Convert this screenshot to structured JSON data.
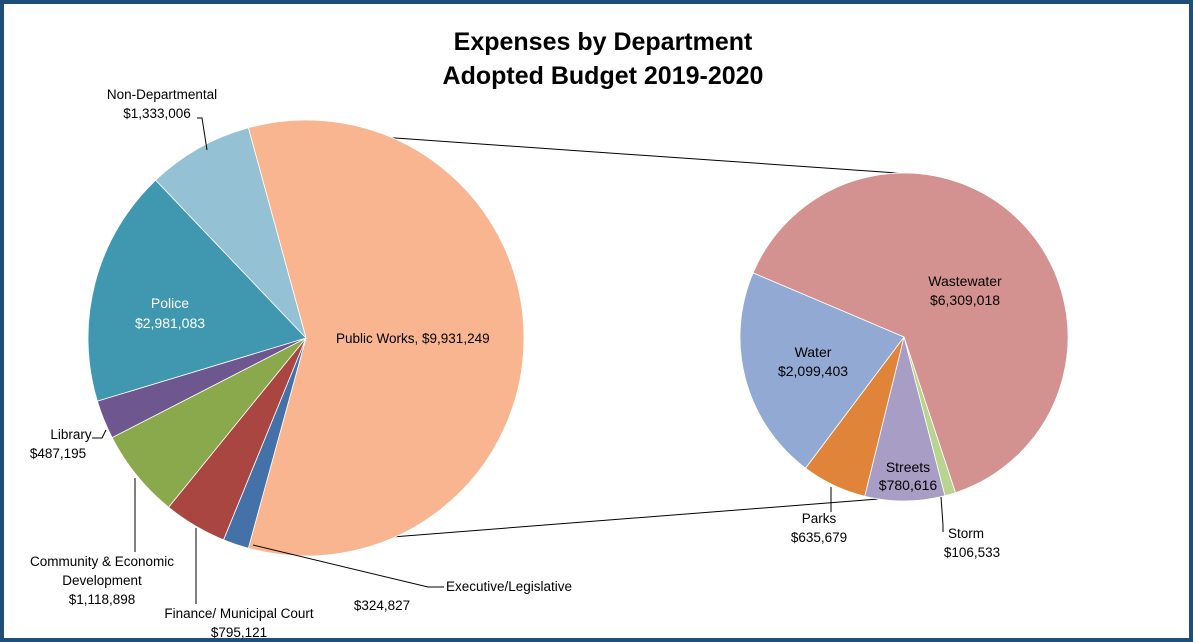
{
  "chart_data": {
    "type": "pie",
    "subtype": "pie-of-pie",
    "title": "Expenses by Department",
    "subtitle": "Adopted Budget 2019-2020",
    "main_pie": {
      "slices": [
        {
          "name": "Public Works",
          "value": 9931249,
          "label": "Public Works, $9,931,249",
          "color": "#f8b590"
        },
        {
          "name": "Executive/Legislative",
          "value": 324827,
          "label_name": "Executive/Legislative",
          "label_value": "$324,827",
          "color": "#4472a8"
        },
        {
          "name": "Finance/ Municipal Court",
          "value": 795121,
          "label_name": "Finance/ Municipal Court",
          "label_value": "$795,121",
          "color": "#aa4641"
        },
        {
          "name": "Community & Economic Development",
          "value": 1118898,
          "label_lines": [
            "Community & Economic",
            "Development",
            "$1,118,898"
          ],
          "color": "#8aa84c"
        },
        {
          "name": "Library",
          "value": 487195,
          "label_name": "Library",
          "label_value": "$487,195",
          "color": "#6e568f"
        },
        {
          "name": "Police",
          "value": 2981083,
          "label_name": "Police",
          "label_value": "$2,981,083",
          "color": "#3f98b0"
        },
        {
          "name": "Non-Departmental",
          "value": 1333006,
          "label_name": "Non-Departmental",
          "label_value": "$1,333,006",
          "color": "#95c1d4"
        }
      ]
    },
    "secondary_pie": {
      "breakout_of": "Public Works",
      "slices": [
        {
          "name": "Wastewater",
          "value": 6309018,
          "label_name": "Wastewater",
          "label_value": "$6,309,018",
          "color": "#d39290"
        },
        {
          "name": "Storm",
          "value": 106533,
          "label_name": "Storm",
          "label_value": "$106,533",
          "color": "#b9d48e"
        },
        {
          "name": "Streets",
          "value": 780616,
          "label_name": "Streets",
          "label_value": "$780,616",
          "color": "#a89dc4"
        },
        {
          "name": "Parks",
          "value": 635679,
          "label_name": "Parks",
          "label_value": "$635,679",
          "color": "#e0843a"
        },
        {
          "name": "Water",
          "value": 2099403,
          "label_name": "Water",
          "label_value": "$2,099,403",
          "color": "#92a9d3"
        }
      ]
    },
    "legend": "none"
  }
}
